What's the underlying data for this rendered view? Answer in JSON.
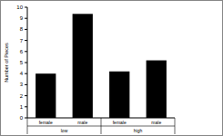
{
  "chart_data": {
    "type": "bar",
    "y_label": "Number of Pieces",
    "groups": [
      "low",
      "high"
    ],
    "categories": [
      "female",
      "male",
      "female",
      "male"
    ],
    "values": [
      4,
      9.4,
      4.2,
      5.2
    ],
    "color": "#000000",
    "ylim": [
      0,
      10
    ],
    "yticks": [
      0,
      1,
      2,
      3,
      4,
      5,
      6,
      7,
      8,
      9,
      10
    ],
    "grid": false
  }
}
